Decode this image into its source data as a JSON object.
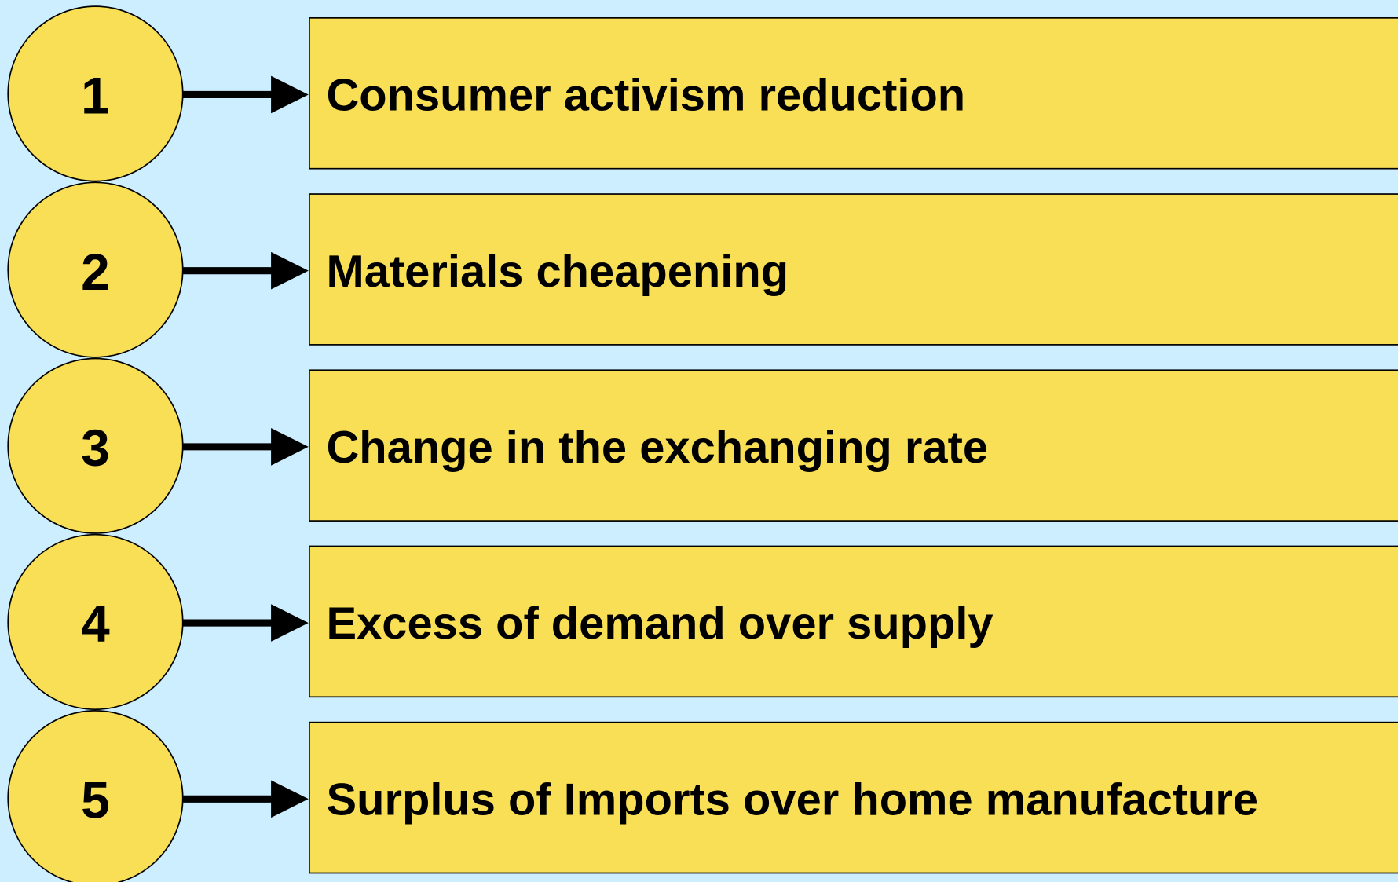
{
  "items": [
    {
      "number": "1",
      "label": "Consumer activism reduction"
    },
    {
      "number": "2",
      "label": "Materials cheapening"
    },
    {
      "number": "3",
      "label": "Change in the exchanging rate"
    },
    {
      "number": "4",
      "label": "Excess of demand over supply"
    },
    {
      "number": "5",
      "label": "Surplus of Imports over home manufacture"
    }
  ]
}
